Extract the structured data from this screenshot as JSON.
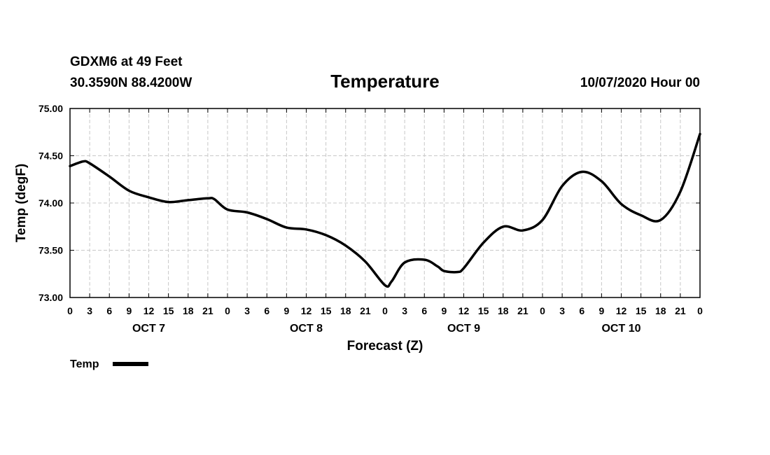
{
  "header": {
    "station": "GDXM6 at 49 Feet",
    "location": "30.3590N 88.4200W",
    "datetime": "10/07/2020 Hour 00"
  },
  "chart_data": {
    "type": "line",
    "title": "Temperature",
    "xlabel": "Forecast (Z)",
    "ylabel": "Temp (degF)",
    "ylim": [
      73.0,
      75.0
    ],
    "yticks": [
      "73.00",
      "73.50",
      "74.00",
      "74.50",
      "75.00"
    ],
    "xlim": [
      0,
      96
    ],
    "x_tick_hours": [
      0,
      3,
      6,
      9,
      12,
      15,
      18,
      21,
      24,
      27,
      30,
      33,
      36,
      39,
      42,
      45,
      48,
      51,
      54,
      57,
      60,
      63,
      66,
      69,
      72,
      75,
      78,
      81,
      84,
      87,
      90,
      93,
      96
    ],
    "x_tick_labels": [
      "0",
      "3",
      "6",
      "9",
      "12",
      "15",
      "18",
      "21",
      "0",
      "3",
      "6",
      "9",
      "12",
      "15",
      "18",
      "21",
      "0",
      "3",
      "6",
      "9",
      "12",
      "15",
      "18",
      "21",
      "0",
      "3",
      "6",
      "9",
      "12",
      "15",
      "18",
      "21",
      "0"
    ],
    "day_labels": [
      {
        "hour": 12,
        "label": "OCT 7"
      },
      {
        "hour": 36,
        "label": "OCT 8"
      },
      {
        "hour": 60,
        "label": "OCT 9"
      },
      {
        "hour": 84,
        "label": "OCT 10"
      }
    ],
    "grid": true,
    "legend": "bottom-left",
    "series": [
      {
        "name": "Temp",
        "color": "#000000",
        "x": [
          0,
          2,
          3,
          6,
          9,
          12,
          15,
          18,
          21,
          22,
          24,
          27,
          30,
          33,
          36,
          39,
          42,
          45,
          48,
          49,
          51,
          54,
          56,
          57,
          59,
          60,
          63,
          66,
          69,
          72,
          75,
          78,
          81,
          84,
          87,
          90,
          93,
          96
        ],
        "values": [
          74.39,
          74.44,
          74.42,
          74.28,
          74.13,
          74.06,
          74.01,
          74.03,
          74.05,
          74.04,
          73.93,
          73.9,
          73.83,
          73.74,
          73.72,
          73.66,
          73.55,
          73.38,
          73.13,
          73.17,
          73.37,
          73.4,
          73.33,
          73.28,
          73.27,
          73.31,
          73.58,
          73.75,
          73.71,
          73.82,
          74.18,
          74.33,
          74.23,
          73.99,
          73.87,
          73.82,
          74.12,
          74.73
        ]
      }
    ]
  }
}
